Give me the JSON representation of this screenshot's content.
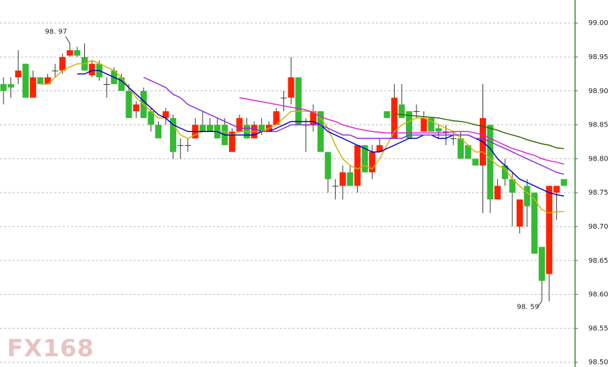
{
  "chart_data": {
    "type": "candlestick",
    "ylim": [
      98.493,
      99.034
    ],
    "yticks": [
      {
        "value": 99.0,
        "label": "99.00"
      },
      {
        "value": 98.95,
        "label": "98.95"
      },
      {
        "value": 98.9,
        "label": "98.90"
      },
      {
        "value": 98.85,
        "label": "98.85"
      },
      {
        "value": 98.8,
        "label": "98.80"
      },
      {
        "value": 98.75,
        "label": "98.75"
      },
      {
        "value": 98.7,
        "label": "98.70"
      },
      {
        "value": 98.65,
        "label": "98.65"
      },
      {
        "value": 98.6,
        "label": "98.60"
      },
      {
        "value": 98.55,
        "label": "98.55"
      },
      {
        "value": 98.5,
        "label": "98.50"
      }
    ],
    "grid": true,
    "up_color": "#ff2200",
    "down_color": "#33bb33",
    "open": [
      98.91,
      98.91,
      98.92,
      98.94,
      98.89,
      98.92,
      98.91,
      98.93,
      98.93,
      98.952,
      98.96,
      98.95,
      98.923,
      98.94,
      98.91,
      98.93,
      98.92,
      98.9,
      98.87,
      98.9,
      98.87,
      98.85,
      98.86,
      98.86,
      98.82,
      98.82,
      98.83,
      98.85,
      98.85,
      98.85,
      98.85,
      98.81,
      98.84,
      98.85,
      98.83,
      98.85,
      98.84,
      98.85,
      98.89,
      98.89,
      98.92,
      98.85,
      98.85,
      98.87,
      98.81,
      98.76,
      98.76,
      98.78,
      98.76,
      98.82,
      98.78,
      98.81,
      98.87,
      98.83,
      98.88,
      98.87,
      98.87,
      98.84,
      98.86,
      98.845,
      98.84,
      98.83,
      98.83,
      98.82,
      98.8,
      98.79,
      98.85,
      98.74,
      98.79,
      98.77,
      98.7,
      98.76,
      98.75,
      98.67,
      98.63,
      98.75,
      98.77
    ],
    "high": [
      98.92,
      98.92,
      98.96,
      98.94,
      98.93,
      98.92,
      98.925,
      98.94,
      98.955,
      98.97,
      98.965,
      98.97,
      98.945,
      98.945,
      98.92,
      98.935,
      98.925,
      98.91,
      98.885,
      98.905,
      98.875,
      98.855,
      98.875,
      98.865,
      98.83,
      98.83,
      98.86,
      98.87,
      98.86,
      98.86,
      98.86,
      98.845,
      98.865,
      98.86,
      98.855,
      98.86,
      98.855,
      98.875,
      98.9,
      98.95,
      98.92,
      98.86,
      98.88,
      98.87,
      98.81,
      98.77,
      98.79,
      98.79,
      98.82,
      98.82,
      98.82,
      98.83,
      98.87,
      98.91,
      98.91,
      98.87,
      98.88,
      98.87,
      98.86,
      98.85,
      98.85,
      98.84,
      98.84,
      98.82,
      98.8,
      98.91,
      98.85,
      98.77,
      98.8,
      98.78,
      98.74,
      98.77,
      98.75,
      98.67,
      98.76,
      98.76,
      98.77
    ],
    "low": [
      98.88,
      98.89,
      98.91,
      98.89,
      98.89,
      98.91,
      98.91,
      98.92,
      98.925,
      98.95,
      98.95,
      98.93,
      98.92,
      98.915,
      98.89,
      98.91,
      98.9,
      98.86,
      98.86,
      98.86,
      98.84,
      98.83,
      98.85,
      98.8,
      98.8,
      98.81,
      98.83,
      98.84,
      98.84,
      98.83,
      98.82,
      98.81,
      98.84,
      98.83,
      98.83,
      98.835,
      98.84,
      98.85,
      98.87,
      98.88,
      98.85,
      98.81,
      98.84,
      98.81,
      98.75,
      98.74,
      98.74,
      98.76,
      98.75,
      98.78,
      98.77,
      98.81,
      98.86,
      98.83,
      98.86,
      98.83,
      98.86,
      98.84,
      98.84,
      98.83,
      98.82,
      98.82,
      98.8,
      98.8,
      98.79,
      98.72,
      98.72,
      98.74,
      98.76,
      98.7,
      98.69,
      98.7,
      98.66,
      98.59,
      98.59,
      98.71,
      98.76
    ],
    "close": [
      98.9,
      98.905,
      98.93,
      98.89,
      98.92,
      98.91,
      98.92,
      98.93,
      98.95,
      98.96,
      98.952,
      98.93,
      98.94,
      98.92,
      98.91,
      98.91,
      98.9,
      98.86,
      98.88,
      98.86,
      98.85,
      98.83,
      98.87,
      98.81,
      98.82,
      98.82,
      98.85,
      98.84,
      98.84,
      98.83,
      98.82,
      98.84,
      98.86,
      98.83,
      98.85,
      98.84,
      98.85,
      98.87,
      98.89,
      98.92,
      98.85,
      98.85,
      98.87,
      98.81,
      98.77,
      98.76,
      98.78,
      98.76,
      98.82,
      98.78,
      98.81,
      98.82,
      98.86,
      98.89,
      98.86,
      98.83,
      98.87,
      98.86,
      98.84,
      98.84,
      98.84,
      98.83,
      98.8,
      98.8,
      98.79,
      98.86,
      98.74,
      98.76,
      98.77,
      98.75,
      98.74,
      98.73,
      98.66,
      98.62,
      98.76,
      98.76,
      98.76
    ],
    "lines": [
      {
        "color": "#d4b000",
        "values": [
          null,
          null,
          null,
          null,
          null,
          98.91,
          98.91,
          98.92,
          98.93,
          98.935,
          98.94,
          98.94,
          98.945,
          98.94,
          98.935,
          98.93,
          98.92,
          98.905,
          98.89,
          98.88,
          98.87,
          98.86,
          98.86,
          98.85,
          98.835,
          98.83,
          98.835,
          98.84,
          98.84,
          98.84,
          98.84,
          98.835,
          98.84,
          98.84,
          98.84,
          98.84,
          98.845,
          98.85,
          98.86,
          98.87,
          98.87,
          98.87,
          98.87,
          98.86,
          98.845,
          98.82,
          98.8,
          98.79,
          98.785,
          98.79,
          98.785,
          98.8,
          98.82,
          98.84,
          98.85,
          98.855,
          98.86,
          98.86,
          98.855,
          98.85,
          98.845,
          98.84,
          98.83,
          98.82,
          98.81,
          98.81,
          98.8,
          98.79,
          98.785,
          98.77,
          98.76,
          98.75,
          98.74,
          98.725,
          98.72,
          98.722,
          98.722
        ]
      },
      {
        "color": "#0000cc",
        "values": [
          null,
          null,
          null,
          null,
          null,
          null,
          null,
          null,
          null,
          null,
          98.925,
          98.925,
          98.93,
          98.93,
          98.925,
          98.92,
          98.915,
          98.905,
          98.895,
          98.885,
          98.875,
          98.865,
          98.86,
          98.85,
          98.845,
          98.84,
          98.84,
          98.84,
          98.84,
          98.84,
          98.835,
          98.835,
          98.835,
          98.835,
          98.835,
          98.84,
          98.84,
          98.845,
          98.85,
          98.855,
          98.855,
          98.855,
          98.855,
          98.85,
          98.84,
          98.835,
          98.83,
          98.825,
          98.82,
          98.815,
          98.81,
          98.81,
          98.815,
          98.82,
          98.825,
          98.83,
          98.83,
          98.835,
          98.835,
          98.83,
          98.83,
          98.835,
          98.835,
          98.835,
          98.83,
          98.825,
          98.815,
          98.8,
          98.79,
          98.78,
          98.77,
          98.765,
          98.76,
          98.755,
          98.75,
          98.747,
          98.745
        ]
      },
      {
        "color": "#8a2be2",
        "values": [
          null,
          null,
          null,
          null,
          null,
          null,
          null,
          null,
          null,
          null,
          null,
          null,
          null,
          null,
          null,
          null,
          null,
          null,
          null,
          98.92,
          98.915,
          98.91,
          98.905,
          98.895,
          98.89,
          98.88,
          98.875,
          98.87,
          98.865,
          98.86,
          98.855,
          98.85,
          98.845,
          98.845,
          98.845,
          98.84,
          98.84,
          98.84,
          98.845,
          98.85,
          98.85,
          98.85,
          98.85,
          98.85,
          98.845,
          98.84,
          98.835,
          98.835,
          98.83,
          98.83,
          98.83,
          98.83,
          98.83,
          98.83,
          98.83,
          98.835,
          98.835,
          98.835,
          98.835,
          98.835,
          98.835,
          98.835,
          98.835,
          98.835,
          98.83,
          98.83,
          98.825,
          98.82,
          98.815,
          98.81,
          98.805,
          98.8,
          98.795,
          98.79,
          98.785,
          98.78,
          98.777
        ]
      },
      {
        "color": "#e020d0",
        "values": [
          null,
          null,
          null,
          null,
          null,
          null,
          null,
          null,
          null,
          null,
          null,
          null,
          null,
          null,
          null,
          null,
          null,
          null,
          null,
          null,
          null,
          null,
          null,
          null,
          null,
          null,
          null,
          null,
          null,
          null,
          null,
          null,
          98.89,
          98.888,
          98.886,
          98.884,
          98.882,
          98.88,
          98.878,
          98.876,
          98.874,
          98.872,
          98.868,
          98.862,
          98.858,
          98.855,
          98.85,
          98.847,
          98.844,
          98.842,
          98.84,
          98.839,
          98.838,
          98.838,
          98.838,
          98.838,
          98.838,
          98.838,
          98.838,
          98.838,
          98.838,
          98.84,
          98.84,
          98.84,
          98.838,
          98.835,
          98.83,
          98.825,
          98.82,
          98.815,
          98.812,
          98.808,
          98.805,
          98.8,
          98.797,
          98.795,
          98.792
        ]
      },
      {
        "color": "#336600",
        "values": [
          null,
          null,
          null,
          null,
          null,
          null,
          null,
          null,
          null,
          null,
          null,
          null,
          null,
          null,
          null,
          null,
          null,
          null,
          null,
          null,
          null,
          null,
          null,
          null,
          null,
          null,
          null,
          null,
          null,
          null,
          null,
          null,
          null,
          null,
          null,
          null,
          null,
          null,
          null,
          null,
          null,
          null,
          null,
          null,
          null,
          null,
          null,
          null,
          null,
          null,
          null,
          null,
          null,
          98.866,
          98.865,
          98.864,
          98.863,
          98.862,
          98.861,
          98.86,
          98.858,
          98.856,
          98.855,
          98.853,
          98.85,
          98.848,
          98.845,
          98.842,
          98.838,
          98.835,
          98.832,
          98.828,
          98.825,
          98.822,
          98.82,
          98.816,
          98.815
        ]
      }
    ],
    "annotations": [
      {
        "text": "98. 97",
        "value": 98.97
      },
      {
        "text": "98. 59",
        "value": 98.59
      }
    ],
    "watermark": "FX168"
  }
}
